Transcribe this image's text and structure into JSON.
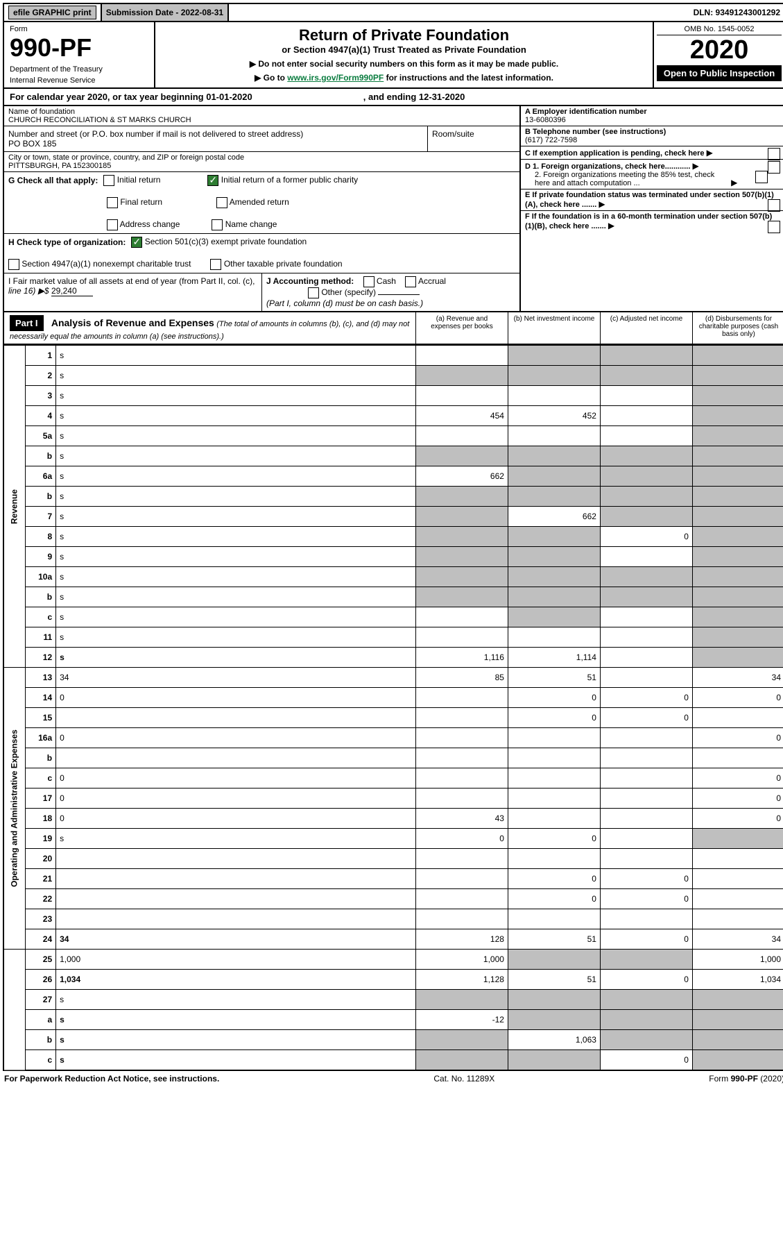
{
  "topbar": {
    "efile": "efile GRAPHIC print",
    "sub_label": "Submission Date - 2022-08-31",
    "dln": "DLN: 93491243001292"
  },
  "header": {
    "form_label": "Form",
    "form_no": "990-PF",
    "dept": "Department of the Treasury",
    "irs": "Internal Revenue Service",
    "title": "Return of Private Foundation",
    "subtitle": "or Section 4947(a)(1) Trust Treated as Private Foundation",
    "instr1": "▶ Do not enter social security numbers on this form as it may be made public.",
    "instr2_pre": "▶ Go to ",
    "instr2_link": "www.irs.gov/Form990PF",
    "instr2_post": " for instructions and the latest information.",
    "omb": "OMB No. 1545-0052",
    "year": "2020",
    "open": "Open to Public Inspection"
  },
  "period": {
    "line": "For calendar year 2020, or tax year beginning 01-01-2020",
    "ending": ", and ending 12-31-2020"
  },
  "name_block": {
    "label": "Name of foundation",
    "name": "CHURCH RECONCILIATION & ST MARKS CHURCH",
    "addr_label": "Number and street (or P.O. box number if mail is not delivered to street address)",
    "addr": "PO BOX 185",
    "room_label": "Room/suite",
    "city_label": "City or town, state or province, country, and ZIP or foreign postal code",
    "city": "PITTSBURGH, PA  152300185"
  },
  "right_block": {
    "a_label": "A Employer identification number",
    "a_val": "13-6080396",
    "b_label": "B Telephone number (see instructions)",
    "b_val": "(617) 722-7598",
    "c_label": "C If exemption application is pending, check here",
    "d1": "D 1. Foreign organizations, check here............",
    "d2": "2. Foreign organizations meeting the 85% test, check here and attach computation ...",
    "e": "E  If private foundation status was terminated under section 507(b)(1)(A), check here .......",
    "f": "F  If the foundation is in a 60-month termination under section 507(b)(1)(B), check here .......",
    "arrow": "▶"
  },
  "g": {
    "label": "G Check all that apply:",
    "opts": [
      "Initial return",
      "Final return",
      "Address change",
      "Initial return of a former public charity",
      "Amended return",
      "Name change"
    ]
  },
  "h": {
    "label": "H Check type of organization:",
    "opts": [
      "Section 501(c)(3) exempt private foundation",
      "Section 4947(a)(1) nonexempt charitable trust",
      "Other taxable private foundation"
    ]
  },
  "i": {
    "label": "I Fair market value of all assets at end of year (from Part II, col. (c),",
    "line16": "line 16) ▶$ ",
    "val": "29,240"
  },
  "j": {
    "label": "J Accounting method:",
    "cash": "Cash",
    "accrual": "Accrual",
    "other": "Other (specify)",
    "note": "(Part I, column (d) must be on cash basis.)"
  },
  "part1": {
    "hdr": "Part I",
    "title": "Analysis of Revenue and Expenses",
    "note": "(The total of amounts in columns (b), (c), and (d) may not necessarily equal the amounts in column (a) (see instructions).)",
    "col_a": "(a)  Revenue and expenses per books",
    "col_b": "(b)  Net investment income",
    "col_c": "(c)  Adjusted net income",
    "col_d": "(d)  Disbursements for charitable purposes (cash basis only)"
  },
  "vlabels": {
    "rev": "Revenue",
    "exp": "Operating and Administrative Expenses"
  },
  "rows": [
    {
      "n": "1",
      "d": "s",
      "a": "",
      "b": "s",
      "c": "s"
    },
    {
      "n": "2",
      "d": "s",
      "a": "s",
      "b": "s",
      "c": "s"
    },
    {
      "n": "3",
      "d": "s",
      "a": "",
      "b": "",
      "c": ""
    },
    {
      "n": "4",
      "d": "s",
      "a": "454",
      "b": "452",
      "c": ""
    },
    {
      "n": "5a",
      "d": "s",
      "a": "",
      "b": "",
      "c": ""
    },
    {
      "n": "b",
      "d": "s",
      "a": "s",
      "b": "s",
      "c": "s"
    },
    {
      "n": "6a",
      "d": "s",
      "a": "662",
      "b": "s",
      "c": "s"
    },
    {
      "n": "b",
      "d": "s",
      "a": "s",
      "b": "s",
      "c": "s"
    },
    {
      "n": "7",
      "d": "s",
      "a": "s",
      "b": "662",
      "c": "s"
    },
    {
      "n": "8",
      "d": "s",
      "a": "s",
      "b": "s",
      "c": "0"
    },
    {
      "n": "9",
      "d": "s",
      "a": "s",
      "b": "s",
      "c": ""
    },
    {
      "n": "10a",
      "d": "s",
      "a": "s",
      "b": "s",
      "c": "s"
    },
    {
      "n": "b",
      "d": "s",
      "a": "s",
      "b": "s",
      "c": "s"
    },
    {
      "n": "c",
      "d": "s",
      "a": "",
      "b": "s",
      "c": ""
    },
    {
      "n": "11",
      "d": "s",
      "a": "",
      "b": "",
      "c": ""
    },
    {
      "n": "12",
      "d": "s",
      "a": "1,116",
      "b": "1,114",
      "c": "",
      "bold": true
    },
    {
      "n": "13",
      "d": "34",
      "a": "85",
      "b": "51",
      "c": ""
    },
    {
      "n": "14",
      "d": "0",
      "a": "",
      "b": "0",
      "c": "0"
    },
    {
      "n": "15",
      "d": "",
      "a": "",
      "b": "0",
      "c": "0"
    },
    {
      "n": "16a",
      "d": "0",
      "a": "",
      "b": "",
      "c": ""
    },
    {
      "n": "b",
      "d": "",
      "a": "",
      "b": "",
      "c": ""
    },
    {
      "n": "c",
      "d": "0",
      "a": "",
      "b": "",
      "c": ""
    },
    {
      "n": "17",
      "d": "0",
      "a": "",
      "b": "",
      "c": ""
    },
    {
      "n": "18",
      "d": "0",
      "a": "43",
      "b": "",
      "c": ""
    },
    {
      "n": "19",
      "d": "s",
      "a": "0",
      "b": "0",
      "c": ""
    },
    {
      "n": "20",
      "d": "",
      "a": "",
      "b": "",
      "c": ""
    },
    {
      "n": "21",
      "d": "",
      "a": "",
      "b": "0",
      "c": "0"
    },
    {
      "n": "22",
      "d": "",
      "a": "",
      "b": "0",
      "c": "0"
    },
    {
      "n": "23",
      "d": "",
      "a": "",
      "b": "",
      "c": ""
    },
    {
      "n": "24",
      "d": "34",
      "a": "128",
      "b": "51",
      "c": "0",
      "bold": true
    },
    {
      "n": "25",
      "d": "1,000",
      "a": "1,000",
      "b": "s",
      "c": "s"
    },
    {
      "n": "26",
      "d": "1,034",
      "a": "1,128",
      "b": "51",
      "c": "0",
      "bold": true
    },
    {
      "n": "27",
      "d": "s",
      "a": "s",
      "b": "s",
      "c": "s"
    },
    {
      "n": "a",
      "d": "s",
      "a": "-12",
      "b": "s",
      "c": "s",
      "bold": true
    },
    {
      "n": "b",
      "d": "s",
      "a": "s",
      "b": "1,063",
      "c": "s",
      "bold": true
    },
    {
      "n": "c",
      "d": "s",
      "a": "s",
      "b": "s",
      "c": "0",
      "bold": true
    }
  ],
  "footer": {
    "left": "For Paperwork Reduction Act Notice, see instructions.",
    "mid": "Cat. No. 11289X",
    "right": "Form 990-PF (2020)"
  }
}
